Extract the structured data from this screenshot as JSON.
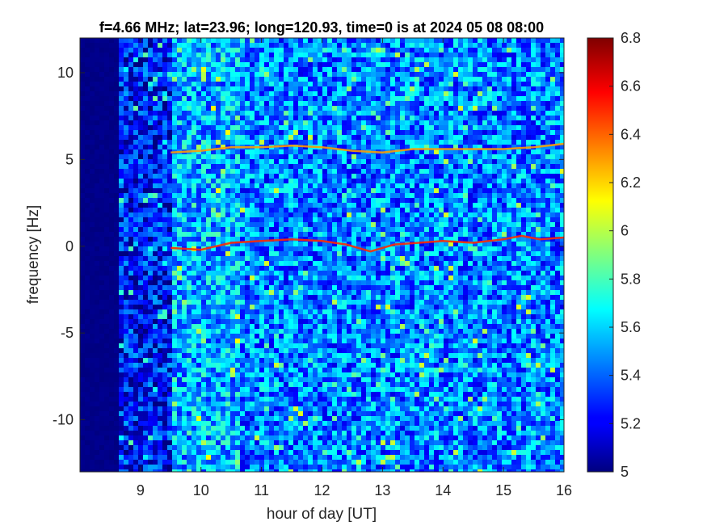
{
  "chart_data": {
    "type": "heatmap",
    "title": "f=4.66 MHz;  lat=23.96; long=120.93, time=0 is at 2024 05 08 08:00",
    "xlabel": "hour of day [UT]",
    "ylabel": "frequency [Hz]",
    "x_range": [
      8.0,
      16.0
    ],
    "y_range": [
      -13.0,
      12.0
    ],
    "x_ticks": [
      9,
      10,
      11,
      12,
      13,
      14,
      15,
      16
    ],
    "x_tick_labels": [
      "9",
      "10",
      "11",
      "12",
      "13",
      "14",
      "15",
      "16"
    ],
    "y_ticks": [
      10,
      5,
      0,
      -5,
      -10
    ],
    "y_tick_labels": [
      "10",
      "5",
      "0",
      "-5",
      "-10"
    ],
    "colorbar": {
      "range": [
        5.0,
        6.8
      ],
      "ticks": [
        6.8,
        6.6,
        6.4,
        6.2,
        6,
        5.8,
        5.6,
        5.4,
        5.2,
        5
      ],
      "tick_labels": [
        "6.8",
        "6.6",
        "6.4",
        "6.2",
        "6",
        "5.8",
        "5.6",
        "5.4",
        "5.2",
        "5"
      ],
      "colormap": "jet"
    },
    "no_data_before_hour": 8.7,
    "background_level": 5.45,
    "features": [
      {
        "band": "main",
        "intensity": 6.5,
        "points": [
          [
            9.5,
            -0.1
          ],
          [
            10,
            -0.2
          ],
          [
            10.5,
            0.2
          ],
          [
            11,
            0.3
          ],
          [
            11.5,
            0.4
          ],
          [
            12,
            0.3
          ],
          [
            12.4,
            0.1
          ],
          [
            12.8,
            -0.3
          ],
          [
            13.2,
            0.1
          ],
          [
            13.6,
            0.2
          ],
          [
            14,
            0.3
          ],
          [
            14.5,
            0.2
          ],
          [
            15,
            0.4
          ],
          [
            15.3,
            0.6
          ],
          [
            15.6,
            0.4
          ],
          [
            16,
            0.5
          ]
        ]
      },
      {
        "band": "upper",
        "intensity": 6.3,
        "points": [
          [
            9.5,
            5.4
          ],
          [
            10,
            5.5
          ],
          [
            10.5,
            5.7
          ],
          [
            11,
            5.7
          ],
          [
            11.5,
            5.8
          ],
          [
            12,
            5.7
          ],
          [
            12.5,
            5.5
          ],
          [
            13,
            5.4
          ],
          [
            13.5,
            5.6
          ],
          [
            14,
            5.6
          ],
          [
            14.5,
            5.6
          ],
          [
            15,
            5.6
          ],
          [
            15.5,
            5.7
          ],
          [
            16,
            5.9
          ]
        ]
      }
    ]
  }
}
